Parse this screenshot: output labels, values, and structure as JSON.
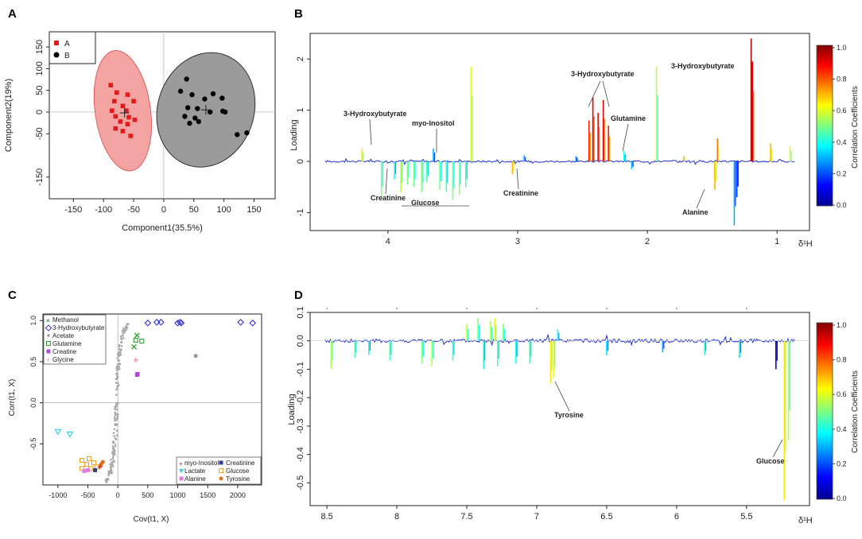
{
  "panels": {
    "a": "A",
    "b": "B",
    "c": "C",
    "d": "D"
  },
  "chart_data": [
    {
      "type": "scatter",
      "panel": "A",
      "xlabel": "Component1(35.5%)",
      "ylabel": "Component2(19%)",
      "xlim": [
        -190,
        185
      ],
      "ylim": [
        -200,
        185
      ],
      "xticks": [
        -150,
        -100,
        -50,
        0,
        50,
        100,
        150
      ],
      "yticks": [
        -150,
        -50,
        0,
        50,
        100,
        150
      ],
      "legend": [
        "A",
        "B"
      ],
      "legend_position": "top-left",
      "series": [
        {
          "name": "A",
          "color": "#e31a1c",
          "shape": "square",
          "points": [
            [
              -88,
              62
            ],
            [
              -78,
              45
            ],
            [
              -82,
              25
            ],
            [
              -60,
              40
            ],
            [
              -50,
              25
            ],
            [
              -68,
              14
            ],
            [
              -86,
              3
            ],
            [
              -62,
              3
            ],
            [
              -80,
              -10
            ],
            [
              -58,
              -12
            ],
            [
              -72,
              -22
            ],
            [
              -48,
              -18
            ],
            [
              -60,
              -28
            ],
            [
              -80,
              -38
            ],
            [
              -68,
              -44
            ],
            [
              -55,
              -55
            ]
          ]
        },
        {
          "name": "B",
          "color": "#000000",
          "shape": "circle",
          "points": [
            [
              38,
              76
            ],
            [
              28,
              48
            ],
            [
              47,
              40
            ],
            [
              82,
              42
            ],
            [
              97,
              32
            ],
            [
              68,
              30
            ],
            [
              40,
              10
            ],
            [
              56,
              8
            ],
            [
              77,
              0
            ],
            [
              98,
              2
            ],
            [
              102,
              0
            ],
            [
              35,
              -10
            ],
            [
              52,
              -14
            ],
            [
              43,
              -26
            ],
            [
              58,
              -22
            ],
            [
              122,
              -52
            ],
            [
              138,
              -48
            ]
          ]
        }
      ],
      "centroids": [
        [
          -65,
          -2
        ],
        [
          70,
          5
        ]
      ],
      "ellipse_colors": {
        "A": "#f4a3a3",
        "B": "#9b9b9b"
      }
    },
    {
      "type": "line",
      "panel": "B",
      "xlabel": "δ¹H",
      "ylabel": "Loading",
      "xlim": [
        4.6,
        0.75
      ],
      "ylim": [
        -1.35,
        2.5
      ],
      "xticks": [
        4,
        3,
        2,
        1
      ],
      "yticks": [
        -1,
        0,
        1,
        2
      ],
      "colorbar": {
        "label": "Correlation Coefficients",
        "ticks": [
          "0.0",
          "0.2",
          "0.4",
          "0.6",
          "0.8",
          "1.0"
        ]
      },
      "peaks": [
        [
          4.2,
          0.25,
          0.65
        ],
        [
          4.05,
          -0.7,
          0.5
        ],
        [
          3.95,
          -0.35,
          0.4
        ],
        [
          3.9,
          -0.6,
          0.55
        ],
        [
          3.85,
          -0.45,
          0.5
        ],
        [
          3.8,
          -0.5,
          0.48
        ],
        [
          3.74,
          -0.6,
          0.5
        ],
        [
          3.7,
          -0.4,
          0.45
        ],
        [
          3.65,
          0.25,
          0.3
        ],
        [
          3.6,
          -0.55,
          0.5
        ],
        [
          3.55,
          -0.6,
          0.45
        ],
        [
          3.5,
          -0.75,
          0.5
        ],
        [
          3.45,
          -0.65,
          0.5
        ],
        [
          3.4,
          -0.5,
          0.45
        ],
        [
          3.36,
          1.85,
          0.6
        ],
        [
          3.04,
          -0.25,
          0.7
        ],
        [
          2.95,
          0.12,
          0.3
        ],
        [
          2.55,
          0.1,
          0.25
        ],
        [
          2.45,
          0.8,
          0.85
        ],
        [
          2.42,
          1.25,
          0.9
        ],
        [
          2.38,
          0.95,
          0.88
        ],
        [
          2.34,
          1.2,
          0.9
        ],
        [
          2.3,
          0.7,
          0.85
        ],
        [
          2.18,
          0.2,
          0.4
        ],
        [
          2.12,
          -0.15,
          0.3
        ],
        [
          1.93,
          1.85,
          0.55
        ],
        [
          1.72,
          0.1,
          0.7
        ],
        [
          1.48,
          -0.55,
          0.7
        ],
        [
          1.46,
          0.45,
          0.75
        ],
        [
          1.33,
          -1.25,
          0.3
        ],
        [
          1.31,
          -0.7,
          0.2
        ],
        [
          1.2,
          2.4,
          0.95
        ],
        [
          1.19,
          1.95,
          0.9
        ],
        [
          1.05,
          0.35,
          0.7
        ],
        [
          0.9,
          0.3,
          0.6
        ]
      ],
      "annotations": [
        "3-Hydroxybutyrate",
        "myo-Inositol",
        "3-Hydroxybutyrate",
        "Glutamine",
        "3-Hydroxybutyrate",
        "Creatinine",
        "Glucose",
        "Creatinine",
        "Alanine"
      ]
    },
    {
      "type": "scatter",
      "panel": "C",
      "xlabel": "Cov(t1, X)",
      "ylabel": "Corr(t1, X)",
      "xlim": [
        -1250,
        2400
      ],
      "ylim": [
        -1.0,
        1.08
      ],
      "xticks": [
        -1000,
        -500,
        0,
        500,
        1000,
        1500,
        2000
      ],
      "yticks": [
        -0.5,
        0.0,
        0.5,
        1.0
      ],
      "legend_top": [
        "Methanol",
        "3-Hydroxybutyrate",
        "Acetate",
        "Glutamine",
        "Creatine",
        "Glycine"
      ],
      "legend_bottom": [
        "myo-Inositol",
        "Creatinine",
        "Lactate",
        "Glucose",
        "Alanine",
        "Tyrosine"
      ],
      "points": {
        "3-Hydroxybutyrate": [
          [
            500,
            0.97
          ],
          [
            650,
            0.98
          ],
          [
            720,
            0.98
          ],
          [
            1000,
            0.97
          ],
          [
            1040,
            0.98
          ],
          [
            1060,
            0.97
          ],
          [
            2050,
            0.98
          ],
          [
            2250,
            0.97
          ]
        ],
        "Methanol": [
          [
            320,
            0.82
          ],
          [
            270,
            0.68
          ]
        ],
        "Glutamine": [
          [
            300,
            0.76
          ],
          [
            400,
            0.75
          ]
        ],
        "Creatine": [
          [
            330,
            0.35
          ],
          [
            320,
            0.34
          ]
        ],
        "Glycine": [
          [
            300,
            0.52
          ]
        ],
        "Acetate": [
          [
            1300,
            0.57
          ]
        ],
        "Lactate": [
          [
            -1000,
            -0.35
          ],
          [
            -800,
            -0.38
          ]
        ],
        "Glucose": [
          [
            -600,
            -0.7
          ],
          [
            -520,
            -0.75
          ],
          [
            -480,
            -0.68
          ],
          [
            -450,
            -0.8
          ],
          [
            -400,
            -0.73
          ],
          [
            -350,
            -0.78
          ],
          [
            -600,
            -0.8
          ]
        ],
        "Tyrosine": [
          [
            -280,
            -0.75
          ],
          [
            -250,
            -0.72
          ]
        ],
        "Alanine": [
          [
            -560,
            -0.83
          ],
          [
            -500,
            -0.82
          ]
        ],
        "Creatinine": [
          [
            -380,
            -0.82
          ]
        ],
        "myo-Inositol": [
          [
            -300,
            -0.78
          ]
        ]
      }
    },
    {
      "type": "line",
      "panel": "D",
      "xlabel": "δ¹H",
      "ylabel": "Loading",
      "xlim": [
        8.62,
        5.05
      ],
      "ylim": [
        -0.58,
        0.1
      ],
      "xticks": [
        8.5,
        8,
        7.5,
        7,
        6.5,
        6,
        5.5
      ],
      "yticks": [
        0.1,
        0.0,
        -0.1,
        -0.2,
        -0.3,
        -0.4,
        -0.5
      ],
      "colorbar": {
        "label": "Correlation Coefficients",
        "ticks": [
          "0.0",
          "0.2",
          "0.4",
          "0.6",
          "0.8",
          "1.0"
        ]
      },
      "peaks": [
        [
          8.47,
          -0.1,
          0.55
        ],
        [
          8.3,
          -0.06,
          0.45
        ],
        [
          8.2,
          -0.05,
          0.4
        ],
        [
          8.05,
          -0.07,
          0.45
        ],
        [
          7.82,
          -0.08,
          0.5
        ],
        [
          7.75,
          -0.09,
          0.55
        ],
        [
          7.6,
          -0.07,
          0.45
        ],
        [
          7.5,
          0.06,
          0.55
        ],
        [
          7.42,
          0.08,
          0.5
        ],
        [
          7.38,
          -0.1,
          0.4
        ],
        [
          7.33,
          0.07,
          0.55
        ],
        [
          7.3,
          0.08,
          0.6
        ],
        [
          7.28,
          -0.09,
          0.45
        ],
        [
          7.24,
          0.06,
          0.5
        ],
        [
          7.15,
          -0.08,
          0.4
        ],
        [
          7.05,
          -0.08,
          0.45
        ],
        [
          6.9,
          -0.15,
          0.65
        ],
        [
          6.88,
          -0.13,
          0.6
        ],
        [
          6.85,
          0.04,
          0.4
        ],
        [
          6.5,
          -0.05,
          0.35
        ],
        [
          6.1,
          -0.04,
          0.3
        ],
        [
          5.8,
          -0.05,
          0.4
        ],
        [
          5.55,
          -0.06,
          0.35
        ],
        [
          5.29,
          -0.1,
          0.1
        ],
        [
          5.23,
          -0.56,
          0.65
        ],
        [
          5.2,
          -0.35,
          0.55
        ]
      ],
      "annotations": [
        "Tyrosine",
        "Glucose"
      ]
    }
  ],
  "labels": {
    "ann_b_3hb_left": "3-Hydroxybutyrate",
    "ann_b_myo": "myo-Inositol",
    "ann_b_3hb_mid": "3-Hydroxybutyrate",
    "ann_b_gln": "Glutamine",
    "ann_b_3hb_right": "3-Hydroxybutyrate",
    "ann_b_creat1": "Creatinine",
    "ann_b_glucose": "Glucose",
    "ann_b_creat2": "Creatinine",
    "ann_b_alanine": "Alanine",
    "ann_d_tyrosine": "Tyrosine",
    "ann_d_glucose": "Glucose"
  }
}
